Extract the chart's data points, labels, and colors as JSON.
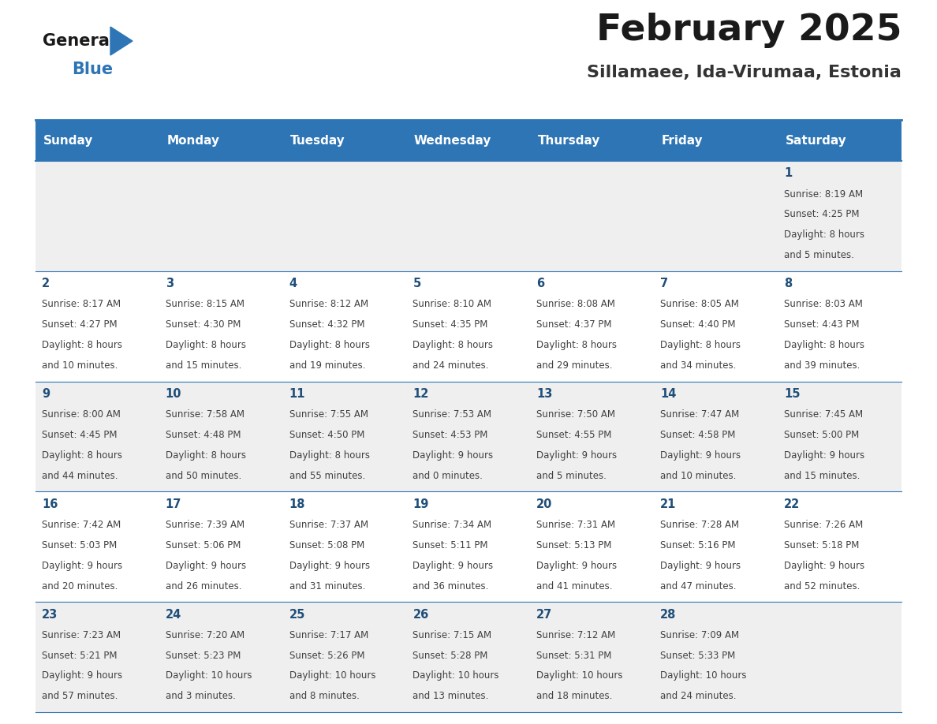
{
  "title": "February 2025",
  "subtitle": "Sillamaee, Ida-Virumaa, Estonia",
  "days_of_week": [
    "Sunday",
    "Monday",
    "Tuesday",
    "Wednesday",
    "Thursday",
    "Friday",
    "Saturday"
  ],
  "header_bg": "#2E75B6",
  "header_text": "#FFFFFF",
  "cell_bg_even": "#EFEFEF",
  "cell_bg_odd": "#FFFFFF",
  "day_number_color": "#1F4E79",
  "cell_text_color": "#404040",
  "border_color": "#2E75B6",
  "calendar_data": [
    {
      "day": 1,
      "col": 6,
      "row": 0,
      "sunrise": "8:19 AM",
      "sunset": "4:25 PM",
      "daylight_hrs": "8",
      "daylight_min": "5"
    },
    {
      "day": 2,
      "col": 0,
      "row": 1,
      "sunrise": "8:17 AM",
      "sunset": "4:27 PM",
      "daylight_hrs": "8",
      "daylight_min": "10"
    },
    {
      "day": 3,
      "col": 1,
      "row": 1,
      "sunrise": "8:15 AM",
      "sunset": "4:30 PM",
      "daylight_hrs": "8",
      "daylight_min": "15"
    },
    {
      "day": 4,
      "col": 2,
      "row": 1,
      "sunrise": "8:12 AM",
      "sunset": "4:32 PM",
      "daylight_hrs": "8",
      "daylight_min": "19"
    },
    {
      "day": 5,
      "col": 3,
      "row": 1,
      "sunrise": "8:10 AM",
      "sunset": "4:35 PM",
      "daylight_hrs": "8",
      "daylight_min": "24"
    },
    {
      "day": 6,
      "col": 4,
      "row": 1,
      "sunrise": "8:08 AM",
      "sunset": "4:37 PM",
      "daylight_hrs": "8",
      "daylight_min": "29"
    },
    {
      "day": 7,
      "col": 5,
      "row": 1,
      "sunrise": "8:05 AM",
      "sunset": "4:40 PM",
      "daylight_hrs": "8",
      "daylight_min": "34"
    },
    {
      "day": 8,
      "col": 6,
      "row": 1,
      "sunrise": "8:03 AM",
      "sunset": "4:43 PM",
      "daylight_hrs": "8",
      "daylight_min": "39"
    },
    {
      "day": 9,
      "col": 0,
      "row": 2,
      "sunrise": "8:00 AM",
      "sunset": "4:45 PM",
      "daylight_hrs": "8",
      "daylight_min": "44"
    },
    {
      "day": 10,
      "col": 1,
      "row": 2,
      "sunrise": "7:58 AM",
      "sunset": "4:48 PM",
      "daylight_hrs": "8",
      "daylight_min": "50"
    },
    {
      "day": 11,
      "col": 2,
      "row": 2,
      "sunrise": "7:55 AM",
      "sunset": "4:50 PM",
      "daylight_hrs": "8",
      "daylight_min": "55"
    },
    {
      "day": 12,
      "col": 3,
      "row": 2,
      "sunrise": "7:53 AM",
      "sunset": "4:53 PM",
      "daylight_hrs": "9",
      "daylight_min": "0"
    },
    {
      "day": 13,
      "col": 4,
      "row": 2,
      "sunrise": "7:50 AM",
      "sunset": "4:55 PM",
      "daylight_hrs": "9",
      "daylight_min": "5"
    },
    {
      "day": 14,
      "col": 5,
      "row": 2,
      "sunrise": "7:47 AM",
      "sunset": "4:58 PM",
      "daylight_hrs": "9",
      "daylight_min": "10"
    },
    {
      "day": 15,
      "col": 6,
      "row": 2,
      "sunrise": "7:45 AM",
      "sunset": "5:00 PM",
      "daylight_hrs": "9",
      "daylight_min": "15"
    },
    {
      "day": 16,
      "col": 0,
      "row": 3,
      "sunrise": "7:42 AM",
      "sunset": "5:03 PM",
      "daylight_hrs": "9",
      "daylight_min": "20"
    },
    {
      "day": 17,
      "col": 1,
      "row": 3,
      "sunrise": "7:39 AM",
      "sunset": "5:06 PM",
      "daylight_hrs": "9",
      "daylight_min": "26"
    },
    {
      "day": 18,
      "col": 2,
      "row": 3,
      "sunrise": "7:37 AM",
      "sunset": "5:08 PM",
      "daylight_hrs": "9",
      "daylight_min": "31"
    },
    {
      "day": 19,
      "col": 3,
      "row": 3,
      "sunrise": "7:34 AM",
      "sunset": "5:11 PM",
      "daylight_hrs": "9",
      "daylight_min": "36"
    },
    {
      "day": 20,
      "col": 4,
      "row": 3,
      "sunrise": "7:31 AM",
      "sunset": "5:13 PM",
      "daylight_hrs": "9",
      "daylight_min": "41"
    },
    {
      "day": 21,
      "col": 5,
      "row": 3,
      "sunrise": "7:28 AM",
      "sunset": "5:16 PM",
      "daylight_hrs": "9",
      "daylight_min": "47"
    },
    {
      "day": 22,
      "col": 6,
      "row": 3,
      "sunrise": "7:26 AM",
      "sunset": "5:18 PM",
      "daylight_hrs": "9",
      "daylight_min": "52"
    },
    {
      "day": 23,
      "col": 0,
      "row": 4,
      "sunrise": "7:23 AM",
      "sunset": "5:21 PM",
      "daylight_hrs": "9",
      "daylight_min": "57"
    },
    {
      "day": 24,
      "col": 1,
      "row": 4,
      "sunrise": "7:20 AM",
      "sunset": "5:23 PM",
      "daylight_hrs": "10",
      "daylight_min": "3"
    },
    {
      "day": 25,
      "col": 2,
      "row": 4,
      "sunrise": "7:17 AM",
      "sunset": "5:26 PM",
      "daylight_hrs": "10",
      "daylight_min": "8"
    },
    {
      "day": 26,
      "col": 3,
      "row": 4,
      "sunrise": "7:15 AM",
      "sunset": "5:28 PM",
      "daylight_hrs": "10",
      "daylight_min": "13"
    },
    {
      "day": 27,
      "col": 4,
      "row": 4,
      "sunrise": "7:12 AM",
      "sunset": "5:31 PM",
      "daylight_hrs": "10",
      "daylight_min": "18"
    },
    {
      "day": 28,
      "col": 5,
      "row": 4,
      "sunrise": "7:09 AM",
      "sunset": "5:33 PM",
      "daylight_hrs": "10",
      "daylight_min": "24"
    }
  ],
  "num_rows": 5,
  "num_cols": 7
}
